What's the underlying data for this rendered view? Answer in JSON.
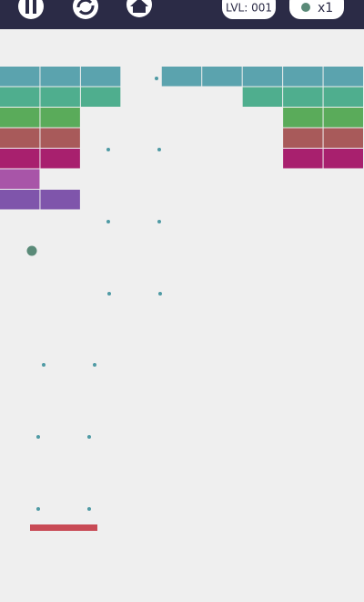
{
  "hud": {
    "level": "LVL: 001",
    "balls": "x1"
  }
}
